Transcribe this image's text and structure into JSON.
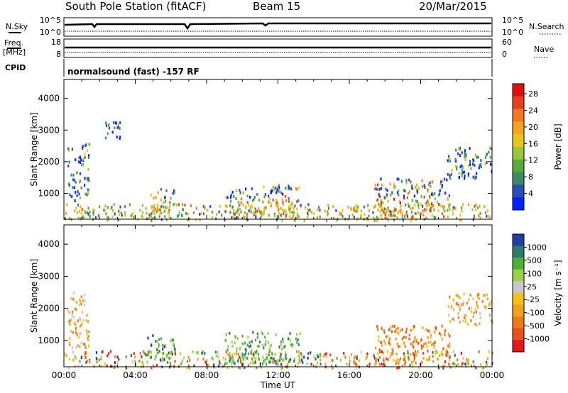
{
  "header": {
    "station": "South Pole Station (fitACF)",
    "beam": "Beam 15",
    "date": "20/Mar/2015"
  },
  "top_panels": {
    "nsky_label": "N.Sky",
    "nsky_ticks": [
      "10^5",
      "10^0"
    ],
    "nsearch_label": "N.Search",
    "nsearch_ticks": [
      "10^5",
      "10^0"
    ],
    "freq_label": "Freq.",
    "freq_unit": "[MHz]",
    "freq_ticks": [
      "18",
      "8"
    ],
    "nave_label": "Nave",
    "nave_ticks": [
      "60",
      "0"
    ],
    "cpid_label": "CPID",
    "cpid_text": "normalsound (fast) -157 RF"
  },
  "chart_data": [
    {
      "type": "heatmap",
      "name": "power",
      "ylabel": "Slant Range [km]",
      "xlabel": "",
      "ylim": [
        180,
        4600
      ],
      "xlim": [
        0,
        24
      ],
      "yticks": [
        "1000",
        "2000",
        "3000",
        "4000"
      ],
      "colorbar": {
        "label": "Power [dB]",
        "ticks": [
          "4",
          "8",
          "12",
          "16",
          "20",
          "24",
          "28"
        ],
        "colors": [
          "#0022ff",
          "#2a4db8",
          "#3f8a66",
          "#5ca83c",
          "#9bc53a",
          "#e8c51c",
          "#f5a51b",
          "#f07a1d",
          "#e8401e",
          "#e01010"
        ]
      },
      "echo_regions": [
        {
          "t": [
            0.2,
            1.4
          ],
          "r": [
            800,
            2600
          ],
          "level": 0.3
        },
        {
          "t": [
            2.3,
            3.2
          ],
          "r": [
            2700,
            3400
          ],
          "level": 0.2
        },
        {
          "t": [
            0.0,
            24.0
          ],
          "r": [
            180,
            700
          ],
          "level": 0.45
        },
        {
          "t": [
            4.6,
            6.2
          ],
          "r": [
            400,
            1200
          ],
          "level": 0.5
        },
        {
          "t": [
            9.0,
            13.2
          ],
          "r": [
            300,
            1300
          ],
          "level": 0.55
        },
        {
          "t": [
            17.4,
            21.6
          ],
          "r": [
            300,
            1500
          ],
          "level": 0.65
        },
        {
          "t": [
            21.4,
            24.0
          ],
          "r": [
            1500,
            2500
          ],
          "level": 0.35
        }
      ]
    },
    {
      "type": "heatmap",
      "name": "velocity",
      "ylabel": "Slant Range [km]",
      "xlabel": "Time UT",
      "ylim": [
        180,
        4600
      ],
      "xlim": [
        0,
        24
      ],
      "yticks": [
        "1000",
        "2000",
        "3000",
        "4000"
      ],
      "xticks": [
        "00:00",
        "04:00",
        "08:00",
        "12:00",
        "16:00",
        "20:00",
        "00:00"
      ],
      "colorbar": {
        "label": "Velocity [m s⁻¹]",
        "ticks": [
          "1000",
          "500",
          "100",
          "25",
          "-25",
          "-100",
          "-500",
          "-1000"
        ],
        "colors": [
          "#2040a0",
          "#2e7a66",
          "#4fae3c",
          "#9bd04e",
          "#c8c8c8",
          "#f5c21b",
          "#f2a31b",
          "#ee7a1f",
          "#e8501e",
          "#e01a1a"
        ]
      },
      "echo_regions": [
        {
          "t": [
            0.2,
            1.4
          ],
          "r": [
            800,
            2600
          ],
          "v": "grey-orange"
        },
        {
          "t": [
            0.0,
            24.0
          ],
          "r": [
            180,
            700
          ],
          "v": "mixed"
        },
        {
          "t": [
            4.6,
            6.2
          ],
          "r": [
            400,
            1200
          ],
          "v": "blue-green"
        },
        {
          "t": [
            9.0,
            13.2
          ],
          "r": [
            300,
            1300
          ],
          "v": "green"
        },
        {
          "t": [
            17.4,
            21.6
          ],
          "r": [
            300,
            1500
          ],
          "v": "orange"
        },
        {
          "t": [
            21.4,
            24.0
          ],
          "r": [
            1500,
            2500
          ],
          "v": "grey-orange"
        }
      ]
    }
  ]
}
